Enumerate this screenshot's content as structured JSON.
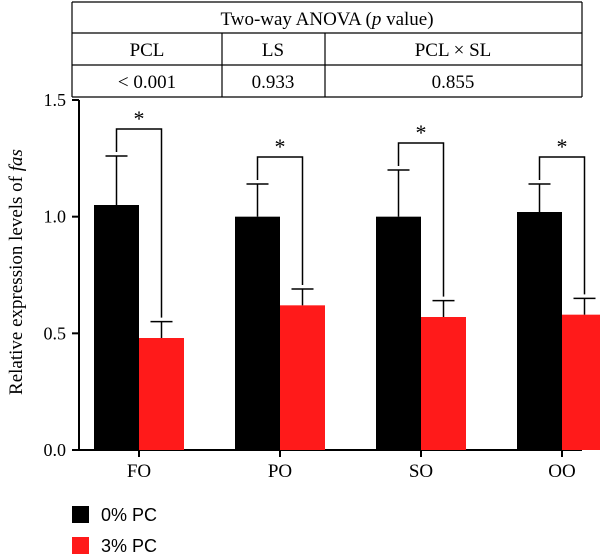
{
  "anova_table": {
    "title_prefix": "Two-way ANOVA (",
    "title_p": "p",
    "title_suffix": " value)",
    "headers": [
      "PCL",
      "LS",
      "PCL × SL"
    ],
    "values": [
      "< 0.001",
      "0.933",
      "0.855"
    ]
  },
  "chart_data": {
    "type": "bar",
    "ylabel_prefix": "Relative expression levels of ",
    "ylabel_italic": "fas",
    "ylim": [
      0,
      1.5
    ],
    "yticks": [
      "0.0",
      "0.5",
      "1.0",
      "1.5"
    ],
    "categories": [
      "FO",
      "PO",
      "SO",
      "OO"
    ],
    "series": [
      {
        "name": "0% PC",
        "color": "#000000",
        "values": [
          1.05,
          1.0,
          1.0,
          1.02
        ],
        "errors": [
          0.21,
          0.14,
          0.2,
          0.12
        ]
      },
      {
        "name": "3% PC",
        "color": "#ff1a1a",
        "values": [
          0.48,
          0.62,
          0.57,
          0.58
        ],
        "errors": [
          0.07,
          0.07,
          0.07,
          0.07
        ]
      }
    ],
    "significance": [
      "*",
      "*",
      "*",
      "*"
    ],
    "legend_position": "bottom-left"
  }
}
